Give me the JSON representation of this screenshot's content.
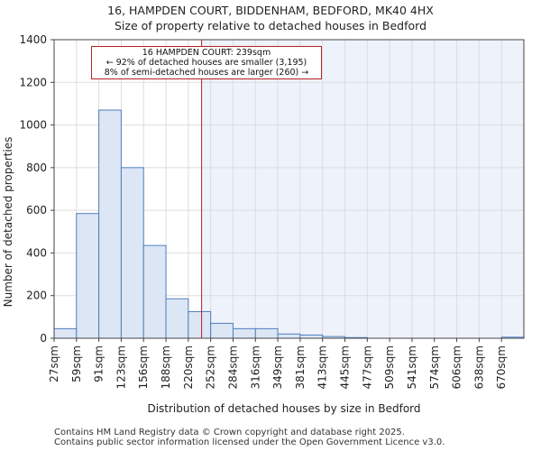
{
  "header": {
    "title_line1": "16, HAMPDEN COURT, BIDDENHAM, BEDFORD, MK40 4HX",
    "title_line2": "Size of property relative to detached houses in Bedford"
  },
  "annotation": {
    "line1": "16 HAMPDEN COURT: 239sqm",
    "line2": "← 92% of detached houses are smaller (3,195)",
    "line3": "8% of semi-detached houses are larger (260) →"
  },
  "footer": {
    "line1": "Contains HM Land Registry data © Crown copyright and database right 2025.",
    "line2": "Contains public sector information licensed under the Open Government Licence v3.0."
  },
  "colors": {
    "bar_fill": "#dce6f5",
    "bar_stroke": "#4f7fc0",
    "marker_line": "#b22222",
    "highlight_region": "#eef2fa"
  },
  "chart_data": {
    "type": "bar",
    "title": "Size of property relative to detached houses in Bedford",
    "xlabel": "Distribution of detached houses by size in Bedford",
    "ylabel": "Number of detached properties",
    "categories": [
      "27sqm",
      "59sqm",
      "91sqm",
      "123sqm",
      "156sqm",
      "188sqm",
      "220sqm",
      "252sqm",
      "284sqm",
      "316sqm",
      "349sqm",
      "381sqm",
      "413sqm",
      "445sqm",
      "477sqm",
      "509sqm",
      "541sqm",
      "574sqm",
      "606sqm",
      "638sqm",
      "670sqm"
    ],
    "values": [
      45,
      585,
      1070,
      800,
      435,
      185,
      125,
      70,
      45,
      45,
      20,
      15,
      8,
      3,
      0,
      0,
      0,
      0,
      0,
      0,
      5
    ],
    "ylim": [
      0,
      1400
    ],
    "yticks": [
      0,
      200,
      400,
      600,
      800,
      1000,
      1200,
      1400
    ],
    "marker_value_sqm": 239,
    "marker_label": "16 HAMPDEN COURT: 239sqm",
    "grid": true
  }
}
